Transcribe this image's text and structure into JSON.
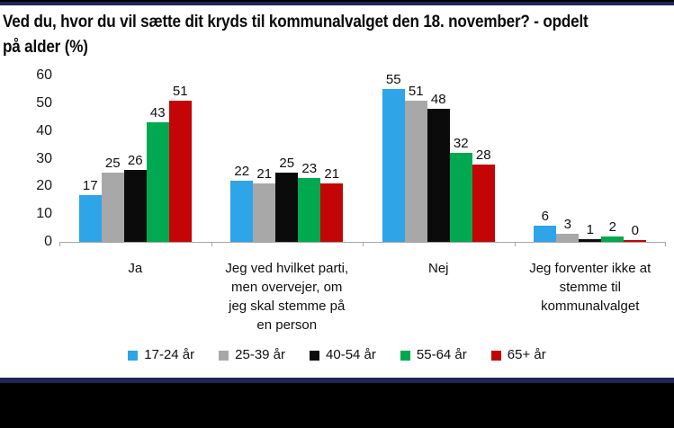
{
  "page": {
    "title_line1": "Ved du, hvor du vil sætte dit kryds til kommunalvalget den 18. november? - opdelt",
    "title_line2": "på alder (%)"
  },
  "chart_data": {
    "type": "bar",
    "title": "Ved du, hvor du vil sætte dit kryds til kommunalvalget den 18. november? - opdelt på alder (%)",
    "categories": [
      "Ja",
      "Jeg  ved hvilket parti,\nmen overvejer, om\njeg skal stemme på\nen person",
      "Nej",
      "Jeg forventer ikke at\nstemme til\nkommunalvalget"
    ],
    "series": [
      {
        "name": "17-24 år",
        "color": "#2ea4e9",
        "values": [
          17,
          22,
          55,
          6
        ]
      },
      {
        "name": "25-39 år",
        "color": "#a8a8a8",
        "values": [
          25,
          21,
          51,
          3
        ]
      },
      {
        "name": "40-54 år",
        "color": "#0b0b0b",
        "values": [
          26,
          25,
          48,
          1
        ]
      },
      {
        "name": "55-64 år",
        "color": "#00a950",
        "values": [
          43,
          23,
          32,
          2
        ]
      },
      {
        "name": "65+ år",
        "color": "#c30505",
        "values": [
          51,
          21,
          28,
          0
        ]
      }
    ],
    "ylim": [
      0,
      60
    ],
    "y_ticks": [
      0,
      10,
      20,
      30,
      40,
      50,
      60
    ],
    "grid": "off",
    "data_labels": true,
    "legend_position": "bottom",
    "axis_color": "#a6a6a6"
  },
  "frame": {
    "border_color": "#1e2557",
    "footer_color": "#000000",
    "background": "#ffffff"
  }
}
